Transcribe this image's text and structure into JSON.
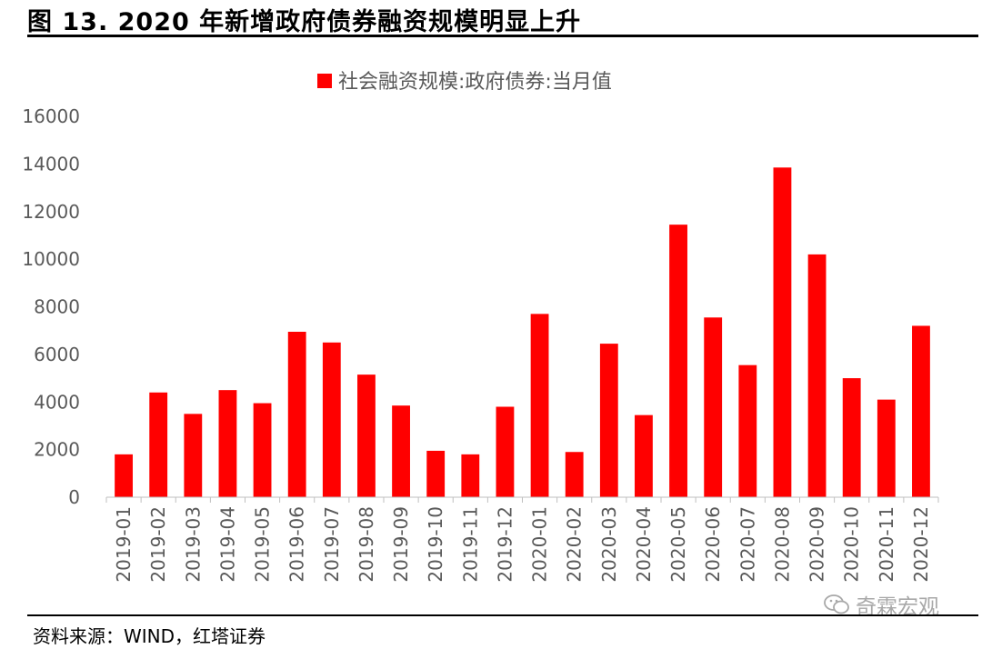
{
  "figure": {
    "title": "图 13. 2020 年新增政府债券融资规模明显上升",
    "source": "资料来源：WIND，红塔证券",
    "watermark": "奇霖宏观",
    "watermark_icon": "wechat-icon"
  },
  "chart_data": {
    "type": "bar",
    "categories": [
      "2019-01",
      "2019-02",
      "2019-03",
      "2019-04",
      "2019-05",
      "2019-06",
      "2019-07",
      "2019-08",
      "2019-09",
      "2019-10",
      "2019-11",
      "2019-12",
      "2020-01",
      "2020-02",
      "2020-03",
      "2020-04",
      "2020-05",
      "2020-06",
      "2020-07",
      "2020-08",
      "2020-09",
      "2020-10",
      "2020-11",
      "2020-12"
    ],
    "series": [
      {
        "name": "社会融资规模:政府债券:当月值",
        "color": "#ff0000",
        "values": [
          1800,
          4400,
          3500,
          4500,
          3950,
          6950,
          6500,
          5150,
          3850,
          1950,
          1800,
          3800,
          7700,
          1900,
          6450,
          3450,
          11450,
          7550,
          5550,
          13850,
          10200,
          5000,
          4100,
          7200
        ]
      }
    ],
    "ylim": [
      0,
      16000
    ],
    "yticks": [
      0,
      2000,
      4000,
      6000,
      8000,
      10000,
      12000,
      14000,
      16000
    ],
    "grid": false,
    "legend_position": "top-center",
    "xlabel": "",
    "ylabel": ""
  }
}
